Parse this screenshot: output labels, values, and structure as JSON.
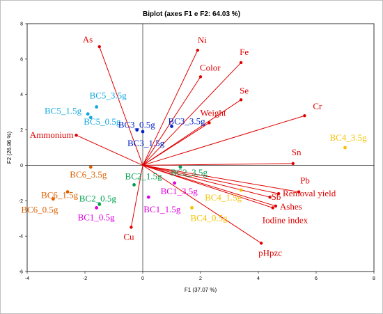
{
  "chart_data": {
    "type": "scatter",
    "title": "Biplot (axes F1 e F2: 64.03 %)",
    "xlabel": "F1 (37.07 %)",
    "ylabel": "F2 (26.96 %)",
    "xlim": [
      -4,
      8
    ],
    "ylim": [
      -6,
      8
    ],
    "xticks": [
      "-4",
      "-2",
      "0",
      "2",
      "4",
      "6",
      "8"
    ],
    "yticks": [
      "-6",
      "-4",
      "-2",
      "0",
      "2",
      "4",
      "6",
      "8"
    ],
    "grid": false,
    "legend": "none",
    "variables": [
      {
        "label": "As",
        "x": -1.5,
        "y": 6.7
      },
      {
        "label": "Ni",
        "x": 1.9,
        "y": 6.5
      },
      {
        "label": "Fe",
        "x": 3.4,
        "y": 5.8
      },
      {
        "label": "Color",
        "x": 2.0,
        "y": 5.0
      },
      {
        "label": "Se",
        "x": 3.4,
        "y": 3.7
      },
      {
        "label": "Weight",
        "x": 2.3,
        "y": 2.4
      },
      {
        "label": "Cr",
        "x": 5.6,
        "y": 2.8
      },
      {
        "label": "Ammonium",
        "x": -2.3,
        "y": 1.7
      },
      {
        "label": "Sn",
        "x": 5.2,
        "y": 0.1
      },
      {
        "label": "Pb",
        "x": 5.4,
        "y": -1.5
      },
      {
        "label": "Removal yield",
        "x": 4.7,
        "y": -1.6
      },
      {
        "label": "Sb",
        "x": 4.4,
        "y": -1.8
      },
      {
        "label": "Ashes",
        "x": 4.6,
        "y": -2.3
      },
      {
        "label": "Iodine index",
        "x": 4.5,
        "y": -2.4
      },
      {
        "label": "Cu",
        "x": -0.4,
        "y": -3.5
      },
      {
        "label": "pHpzc",
        "x": 4.1,
        "y": -4.4
      }
    ],
    "observations": [
      {
        "label": "BC5_3.5g",
        "x": -1.6,
        "y": 3.3,
        "group": "BC5"
      },
      {
        "label": "BC5_1.5g",
        "x": -1.9,
        "y": 2.9,
        "group": "BC5"
      },
      {
        "label": "BC5_0.5g",
        "x": -1.8,
        "y": 2.7,
        "group": "BC5"
      },
      {
        "label": "BC3_0.5g",
        "x": -0.2,
        "y": 2.0,
        "group": "BC3"
      },
      {
        "label": "BC3_3.5g",
        "x": 1.0,
        "y": 2.2,
        "group": "BC3"
      },
      {
        "label": "BC3_1.5g",
        "x": 0.0,
        "y": 1.9,
        "group": "BC3"
      },
      {
        "label": "BC4_3.5g",
        "x": 7.0,
        "y": 1.0,
        "group": "BC4"
      },
      {
        "label": "BC4_1.5g",
        "x": 3.4,
        "y": -1.4,
        "group": "BC4"
      },
      {
        "label": "BC4_0.5g",
        "x": 1.7,
        "y": -2.4,
        "group": "BC4"
      },
      {
        "label": "BC2_3.5g",
        "x": 1.3,
        "y": -0.1,
        "group": "BC2"
      },
      {
        "label": "BC2_1.5g",
        "x": -0.3,
        "y": -1.1,
        "group": "BC2"
      },
      {
        "label": "BC2_0.5g",
        "x": -1.5,
        "y": -2.2,
        "group": "BC2"
      },
      {
        "label": "BC1_3.5g",
        "x": 1.1,
        "y": -1.0,
        "group": "BC1"
      },
      {
        "label": "BC1_1.5g",
        "x": 0.2,
        "y": -1.8,
        "group": "BC1"
      },
      {
        "label": "BC1_0.5g",
        "x": -1.6,
        "y": -2.4,
        "group": "BC1"
      },
      {
        "label": "BC6_3.5g",
        "x": -1.8,
        "y": -0.1,
        "group": "BC6"
      },
      {
        "label": "BC6_1.5g",
        "x": -2.6,
        "y": -1.5,
        "group": "BC6"
      },
      {
        "label": "BC6_0.5g",
        "x": -3.1,
        "y": -1.9,
        "group": "BC6"
      }
    ],
    "colors": {
      "variables": "#e00000",
      "BC1": "#e000e0",
      "BC2": "#00a050",
      "BC3": "#0020c8",
      "BC4": "#f5c200",
      "BC5": "#10a8e0",
      "BC6": "#e06000"
    }
  }
}
